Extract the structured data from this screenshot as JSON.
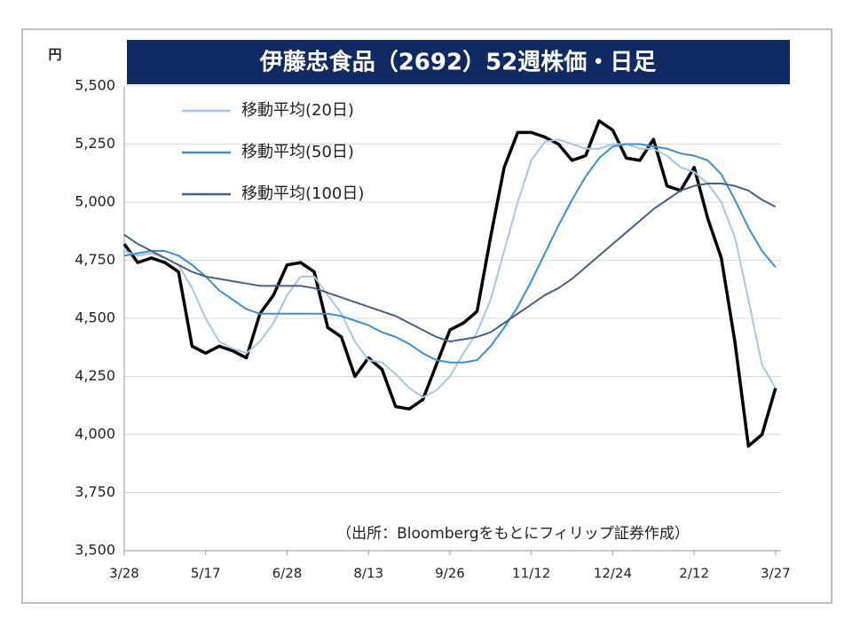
{
  "chart_data": {
    "type": "line",
    "title": "伊藤忠食品（2692）52週株価・日足",
    "y_label": "円",
    "annotation": "（出所：Bloombergをもとにフィリップ証券作成）",
    "x": [
      0,
      5,
      10,
      15,
      20,
      25,
      30,
      35,
      40,
      45,
      50,
      55,
      60,
      65,
      70,
      75,
      80,
      85,
      90,
      95,
      100,
      105,
      110,
      115,
      120,
      125,
      130,
      135,
      140,
      145,
      150,
      155,
      160,
      165,
      170,
      175,
      180,
      185,
      190,
      195,
      200,
      205,
      210,
      215,
      220,
      225,
      230,
      235,
      240
    ],
    "xlim": [
      0,
      242
    ],
    "xticks": [
      {
        "value": 0,
        "label": "3/28"
      },
      {
        "value": 30,
        "label": "5/17"
      },
      {
        "value": 60,
        "label": "6/28"
      },
      {
        "value": 90,
        "label": "8/13"
      },
      {
        "value": 120,
        "label": "9/26"
      },
      {
        "value": 150,
        "label": "11/12"
      },
      {
        "value": 180,
        "label": "12/24"
      },
      {
        "value": 210,
        "label": "2/12"
      },
      {
        "value": 240,
        "label": "3/27"
      }
    ],
    "ylim": [
      3500,
      5500
    ],
    "yticks": [
      {
        "value": 3500,
        "label": "3,500"
      },
      {
        "value": 3750,
        "label": "3,750"
      },
      {
        "value": 4000,
        "label": "4,000"
      },
      {
        "value": 4250,
        "label": "4,250"
      },
      {
        "value": 4500,
        "label": "4,500"
      },
      {
        "value": 4750,
        "label": "4,750"
      },
      {
        "value": 5000,
        "label": "5,000"
      },
      {
        "value": 5250,
        "label": "5,250"
      },
      {
        "value": 5500,
        "label": "5,500"
      }
    ],
    "grid": true,
    "legend": "upper left",
    "series": [
      {
        "color": "#000000",
        "values": [
          4820,
          4740,
          4760,
          4740,
          4700,
          4380,
          4350,
          4380,
          4360,
          4330,
          4520,
          4600,
          4730,
          4740,
          4700,
          4460,
          4420,
          4250,
          4330,
          4280,
          4120,
          4110,
          4150,
          4300,
          4450,
          4480,
          4530,
          4850,
          5150,
          5300,
          5300,
          5280,
          5250,
          5180,
          5200,
          5350,
          5310,
          5190,
          5180,
          5270,
          5070,
          5050,
          5150,
          4930,
          4760,
          4400,
          3950,
          4000,
          4200
        ]
      },
      {
        "name": "移動平均(20日)",
        "color": "#a9c4e4",
        "values": [
          4790,
          4770,
          4780,
          4760,
          4730,
          4630,
          4500,
          4400,
          4370,
          4350,
          4400,
          4480,
          4600,
          4680,
          4680,
          4600,
          4520,
          4400,
          4320,
          4310,
          4260,
          4200,
          4160,
          4190,
          4250,
          4350,
          4440,
          4580,
          4790,
          5000,
          5180,
          5260,
          5270,
          5250,
          5230,
          5230,
          5250,
          5250,
          5230,
          5230,
          5200,
          5150,
          5130,
          5080,
          5000,
          4850,
          4580,
          4300,
          4200
        ]
      },
      {
        "name": "移動平均(50日)",
        "color": "#3b8fd0",
        "values": [
          4770,
          4780,
          4790,
          4790,
          4770,
          4730,
          4680,
          4620,
          4580,
          4540,
          4520,
          4520,
          4520,
          4520,
          4520,
          4520,
          4510,
          4490,
          4470,
          4440,
          4420,
          4390,
          4350,
          4320,
          4310,
          4310,
          4320,
          4380,
          4460,
          4550,
          4660,
          4780,
          4900,
          5010,
          5110,
          5190,
          5240,
          5250,
          5250,
          5240,
          5230,
          5210,
          5200,
          5180,
          5120,
          5010,
          4890,
          4790,
          4720
        ]
      },
      {
        "name": "移動平均(100日)",
        "color": "#4a5f7e",
        "values": [
          4860,
          4820,
          4790,
          4760,
          4730,
          4700,
          4680,
          4670,
          4660,
          4650,
          4640,
          4640,
          4640,
          4640,
          4630,
          4610,
          4590,
          4570,
          4550,
          4530,
          4510,
          4480,
          4450,
          4420,
          4400,
          4410,
          4420,
          4440,
          4480,
          4520,
          4560,
          4600,
          4630,
          4670,
          4720,
          4770,
          4820,
          4870,
          4920,
          4970,
          5010,
          5050,
          5070,
          5080,
          5080,
          5070,
          5050,
          5010,
          4980
        ]
      }
    ]
  }
}
